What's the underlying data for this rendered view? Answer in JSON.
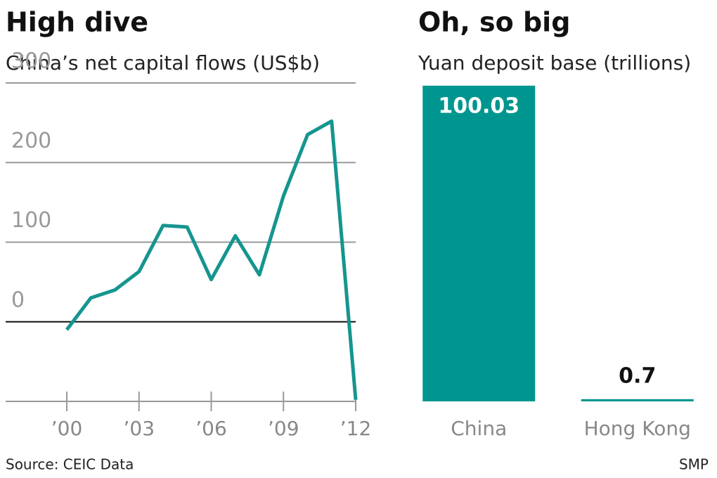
{
  "chart_data": [
    {
      "type": "line",
      "title": "High dive",
      "subtitle": "China’s net capital flows (US$b)",
      "categories": [
        "’00",
        null,
        null,
        "’03",
        null,
        null,
        "’06",
        null,
        null,
        "’09",
        null,
        null,
        "’12"
      ],
      "values": [
        -10,
        30,
        40,
        63,
        121,
        119,
        53,
        108,
        59,
        158,
        235,
        252,
        -98
      ],
      "color": "#16958f",
      "ylim": [
        -100,
        300
      ],
      "yticks": [
        0,
        100,
        200,
        300
      ],
      "grid": true
    },
    {
      "type": "bar",
      "title": "Oh, so big",
      "subtitle": "Yuan deposit base (trillions)",
      "categories": [
        "China",
        "Hong Kong"
      ],
      "values": [
        100.03,
        0.7
      ],
      "color": "#00968f",
      "ylim": [
        0,
        100
      ]
    }
  ],
  "source": "Source: CEIC Data",
  "credit": "SMP"
}
